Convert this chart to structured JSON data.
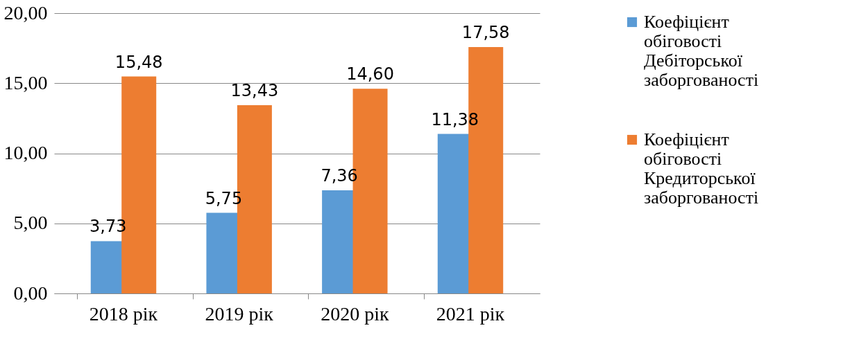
{
  "chart_data": {
    "type": "bar",
    "categories": [
      "2018 рік",
      "2019 рік",
      "2020 рік",
      "2021 рік"
    ],
    "series": [
      {
        "name": "Коефіцієнт обіговості Дебіторської заборгованості",
        "color": "#5b9bd5",
        "values": [
          3.73,
          5.75,
          7.36,
          11.38
        ],
        "value_labels": [
          "3,73",
          "5,75",
          "7,36",
          "11,38"
        ]
      },
      {
        "name": "Коефіцієнт обіговості Кредиторської заборгованості",
        "color": "#ed7d31",
        "values": [
          15.48,
          13.43,
          14.6,
          17.58
        ],
        "value_labels": [
          "15,48",
          "13,43",
          "14,60",
          "17,58"
        ]
      }
    ],
    "ylim": [
      0,
      20
    ],
    "yticks": [
      {
        "value": 0,
        "label": "0,00"
      },
      {
        "value": 5,
        "label": "5,00"
      },
      {
        "value": 10,
        "label": "10,00"
      },
      {
        "value": 15,
        "label": "15,00"
      },
      {
        "value": 20,
        "label": "20,00"
      }
    ],
    "grid": "y",
    "legend": "right"
  }
}
